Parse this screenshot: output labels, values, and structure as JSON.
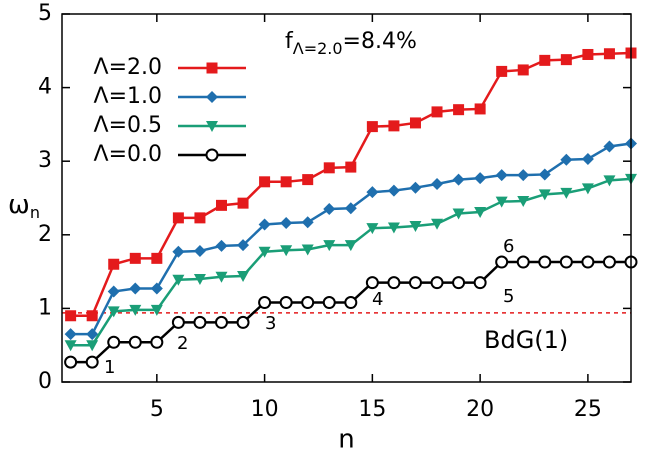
{
  "chart_data": {
    "type": "line",
    "x_label": "n",
    "y_label": {
      "main": "ω",
      "sub": "n"
    },
    "x": [
      1,
      2,
      3,
      4,
      5,
      6,
      7,
      8,
      9,
      10,
      11,
      12,
      13,
      14,
      15,
      16,
      17,
      18,
      19,
      20,
      21,
      22,
      23,
      24,
      25,
      26,
      27
    ],
    "xlim": [
      0.6,
      27
    ],
    "xticks": [
      5,
      10,
      15,
      20,
      25
    ],
    "ylim": [
      0,
      5
    ],
    "yticks": [
      0,
      1,
      2,
      3,
      4,
      5
    ],
    "legend": "upper left",
    "series": [
      {
        "name": "Λ=2.0",
        "color": "#e41a1c",
        "marker": "square",
        "values": [
          0.9,
          0.9,
          1.6,
          1.68,
          1.68,
          2.23,
          2.23,
          2.4,
          2.43,
          2.72,
          2.72,
          2.75,
          2.91,
          2.92,
          3.47,
          3.48,
          3.52,
          3.67,
          3.7,
          3.71,
          4.22,
          4.24,
          4.37,
          4.38,
          4.45,
          4.46,
          4.47
        ]
      },
      {
        "name": "Λ=1.0",
        "color": "#1f6fae",
        "marker": "diamond",
        "values": [
          0.65,
          0.65,
          1.23,
          1.27,
          1.27,
          1.77,
          1.78,
          1.85,
          1.86,
          2.14,
          2.16,
          2.17,
          2.35,
          2.36,
          2.58,
          2.6,
          2.64,
          2.69,
          2.75,
          2.77,
          2.81,
          2.81,
          2.82,
          3.02,
          3.03,
          3.2,
          3.24
        ]
      },
      {
        "name": "Λ=0.5",
        "color": "#1a9e77",
        "marker": "triangle-down",
        "values": [
          0.5,
          0.5,
          0.96,
          0.98,
          0.98,
          1.39,
          1.4,
          1.43,
          1.44,
          1.77,
          1.79,
          1.8,
          1.86,
          1.86,
          2.09,
          2.1,
          2.12,
          2.15,
          2.29,
          2.31,
          2.45,
          2.46,
          2.55,
          2.57,
          2.63,
          2.74,
          2.76
        ]
      },
      {
        "name": "Λ=0.0",
        "color": "#000000",
        "marker": "open-circle",
        "values": [
          0.27,
          0.27,
          0.54,
          0.54,
          0.54,
          0.81,
          0.81,
          0.81,
          0.81,
          1.08,
          1.08,
          1.08,
          1.08,
          1.08,
          1.35,
          1.35,
          1.35,
          1.35,
          1.35,
          1.35,
          1.63,
          1.63,
          1.63,
          1.63,
          1.63,
          1.63,
          1.63
        ]
      }
    ],
    "reference_line": {
      "value": 0.94,
      "label": "BdG(1)",
      "color": "#e41a1c"
    },
    "fraction_note": {
      "main": "f",
      "sub": "Λ=2.0",
      "rest": "=8.4%",
      "color": "#e41a1c"
    },
    "step_labels": [
      "1",
      "2",
      "3",
      "4",
      "5",
      "6"
    ]
  }
}
